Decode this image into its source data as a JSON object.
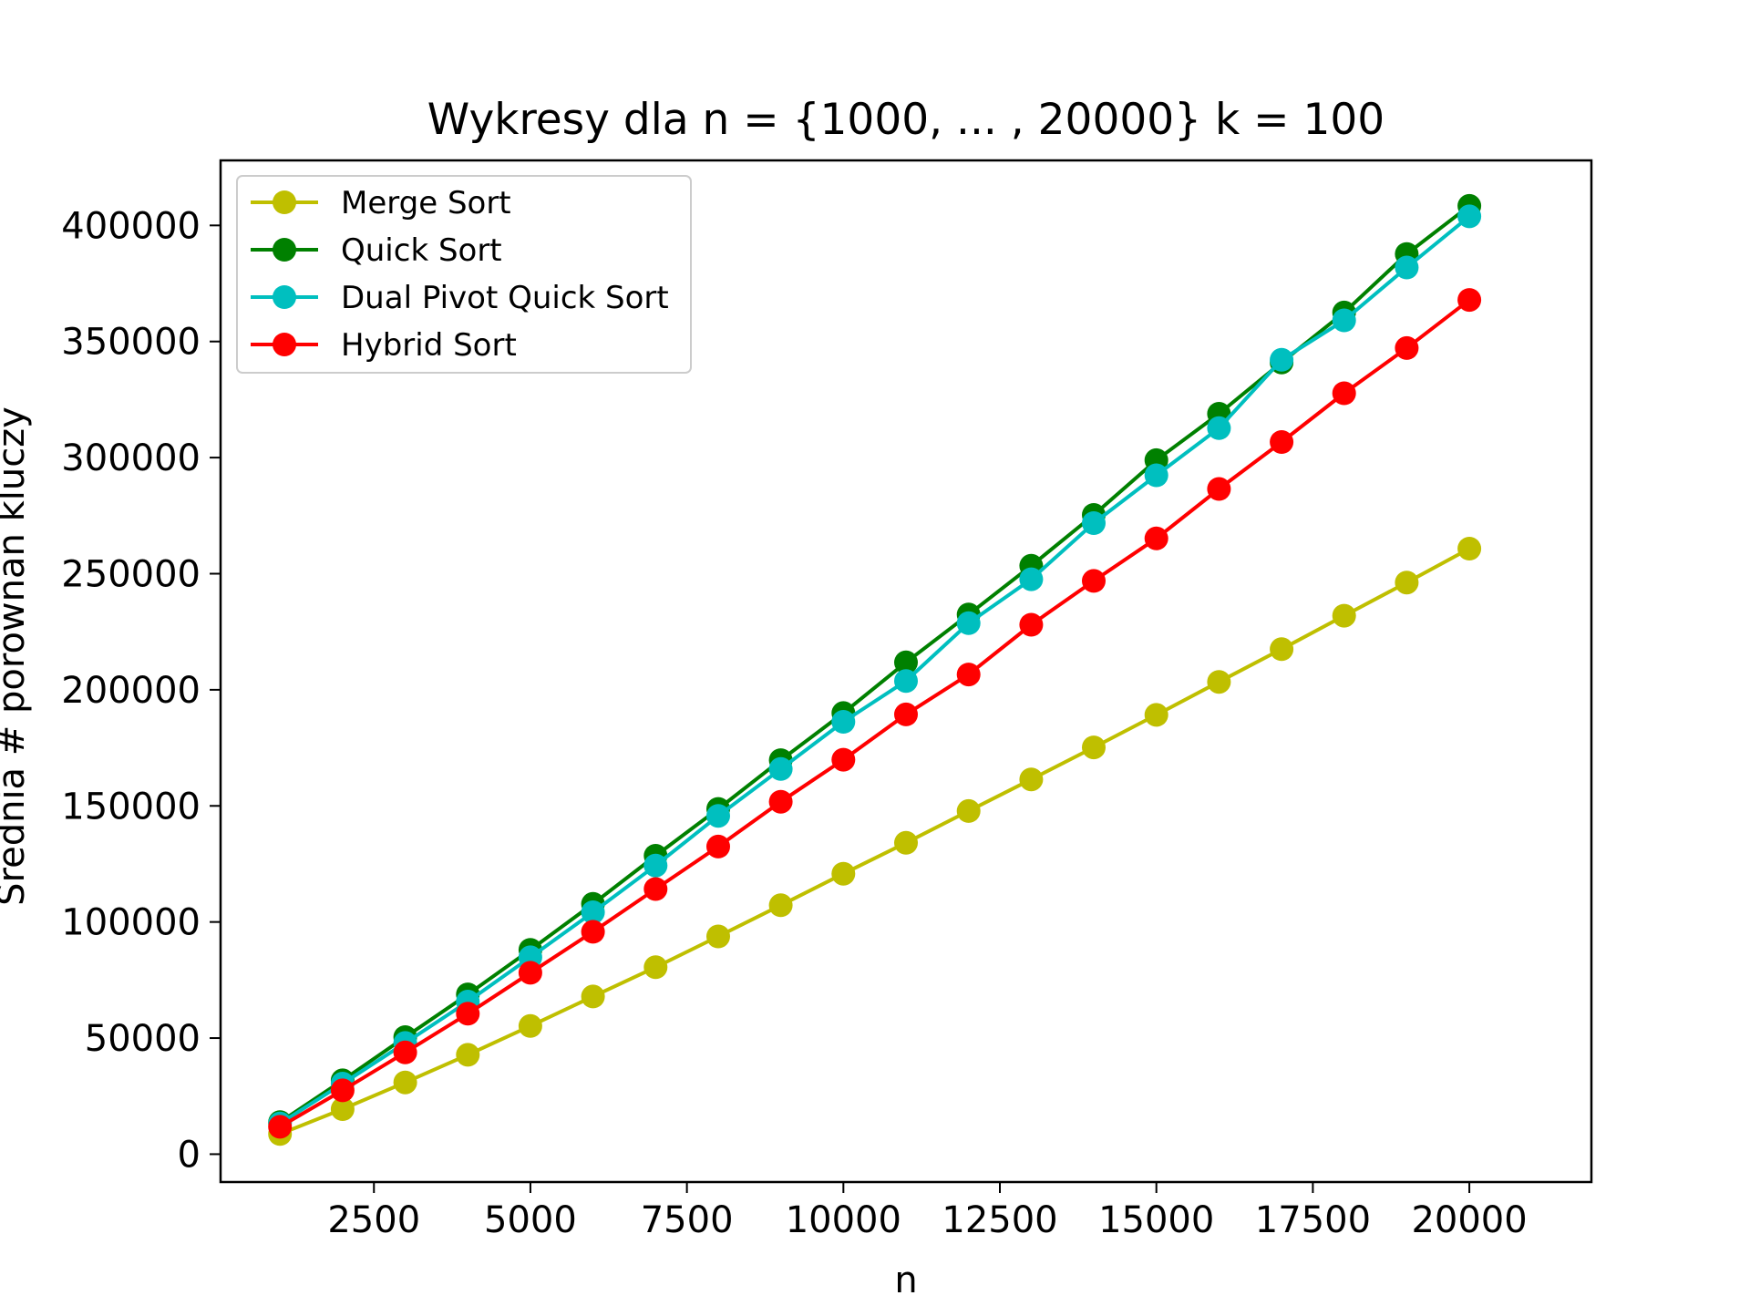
{
  "chart_data": {
    "type": "line",
    "title": "Wykresy dla n = {1000, ... , 20000} k = 100",
    "xlabel": "n",
    "ylabel": "Srednia # porownan kluczy",
    "xlim": [
      50,
      21950
    ],
    "ylim": [
      -12000,
      428000
    ],
    "xticks": [
      2500,
      5000,
      7500,
      10000,
      12500,
      15000,
      17500,
      20000
    ],
    "yticks": [
      0,
      50000,
      100000,
      150000,
      200000,
      250000,
      300000,
      350000,
      400000
    ],
    "grid": false,
    "legend_position": "upper-left",
    "x": [
      1000,
      2000,
      3000,
      4000,
      5000,
      6000,
      7000,
      8000,
      9000,
      10000,
      11000,
      12000,
      13000,
      14000,
      15000,
      16000,
      17000,
      18000,
      19000,
      20000
    ],
    "series": [
      {
        "name": "Merge Sort",
        "color": "#bfbf00",
        "values": [
          8700,
          19400,
          30900,
          42800,
          55200,
          67900,
          80500,
          93800,
          107200,
          120800,
          134100,
          147800,
          161400,
          175200,
          189200,
          203400,
          217500,
          231900,
          246200,
          260800
        ]
      },
      {
        "name": "Quick Sort",
        "color": "#008000",
        "values": [
          13800,
          31800,
          50400,
          68800,
          88000,
          107800,
          128500,
          148700,
          169700,
          190000,
          211800,
          232400,
          253400,
          275300,
          298900,
          318900,
          341000,
          362500,
          387700,
          408400
        ]
      },
      {
        "name": "Dual Pivot Quick Sort",
        "color": "#00bfbf",
        "values": [
          13200,
          30400,
          47900,
          65700,
          84800,
          104200,
          124300,
          145700,
          165900,
          186200,
          203800,
          228700,
          247600,
          271800,
          292400,
          312700,
          342100,
          359100,
          381900,
          403900
        ]
      },
      {
        "name": "Hybrid Sort",
        "color": "#ff0000",
        "values": [
          11800,
          27500,
          43800,
          60500,
          78100,
          95800,
          114200,
          132500,
          151800,
          169900,
          189400,
          206600,
          228000,
          246900,
          265200,
          286500,
          306700,
          327700,
          347200,
          367900
        ]
      }
    ]
  }
}
